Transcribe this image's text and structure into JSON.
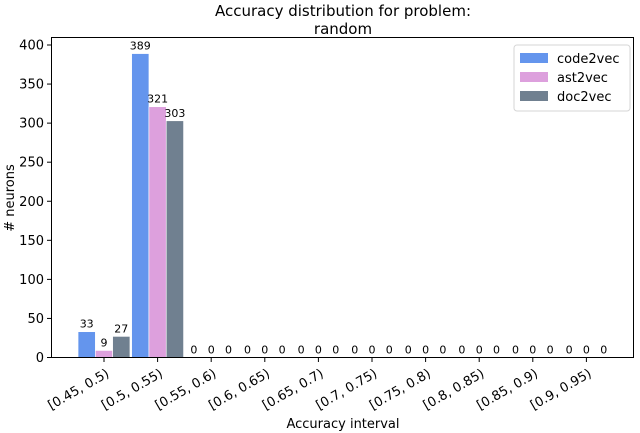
{
  "chart_data": {
    "type": "bar",
    "title": "Accuracy distribution for problem:\nrandom",
    "title_lines": [
      "Accuracy distribution for problem:",
      "random"
    ],
    "xlabel": "Accuracy interval",
    "ylabel": "# neurons",
    "ylim": [
      0,
      410
    ],
    "yticks": [
      0,
      50,
      100,
      150,
      200,
      250,
      300,
      350,
      400
    ],
    "grid": false,
    "legend_position": "upper right",
    "categories": [
      "[0.45, 0.5)",
      "[0.5, 0.55)",
      "[0.55, 0.6)",
      "[0.6, 0.65)",
      "[0.65, 0.7)",
      "[0.7, 0.75)",
      "[0.75, 0.8)",
      "[0.8, 0.85)",
      "[0.85, 0.9)",
      "[0.9, 0.95)"
    ],
    "series": [
      {
        "name": "code2vec",
        "color": "#6495ed",
        "values": [
          33,
          389,
          0,
          0,
          0,
          0,
          0,
          0,
          0,
          0
        ]
      },
      {
        "name": "ast2vec",
        "color": "#dda0dd",
        "values": [
          9,
          321,
          0,
          0,
          0,
          0,
          0,
          0,
          0,
          0
        ]
      },
      {
        "name": "doc2vec",
        "color": "#708090",
        "values": [
          27,
          303,
          0,
          0,
          0,
          0,
          0,
          0,
          0,
          0
        ]
      }
    ]
  }
}
